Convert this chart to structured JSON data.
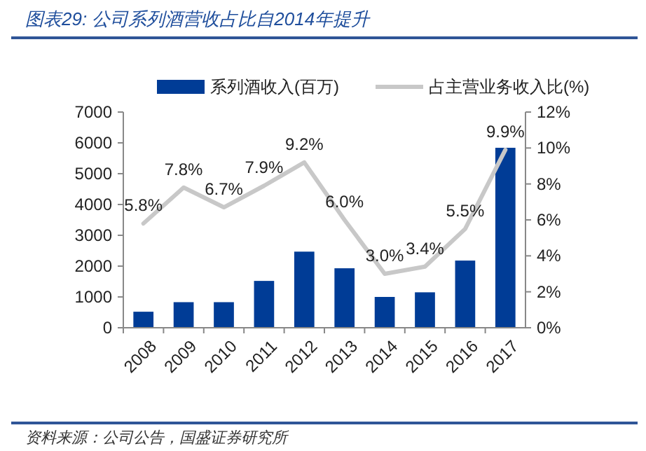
{
  "chart_data": {
    "type": "bar",
    "title": "图表29:  公司系列酒营收占比自2014年提升",
    "annotations": [
      "资料来源：公司公告，国盛证券研究所"
    ],
    "categories": [
      "2008",
      "2009",
      "2010",
      "2011",
      "2012",
      "2013",
      "2014",
      "2015",
      "2016",
      "2017"
    ],
    "series": [
      {
        "name": "系列酒收入(百万)",
        "color": "#003c96",
        "values": [
          520,
          830,
          830,
          1520,
          2470,
          1930,
          1000,
          1150,
          2180,
          5840
        ]
      },
      {
        "name": "占主营业务收入比(%)",
        "type": "line",
        "axis": "y2",
        "color": "#c8c8c8",
        "values": [
          5.8,
          7.8,
          6.7,
          7.9,
          9.2,
          6.0,
          3.0,
          3.4,
          5.5,
          9.9
        ],
        "value_labels": [
          "5.8%",
          "7.8%",
          "6.7%",
          "7.9%",
          "9.2%",
          "6.0%",
          "3.0%",
          "3.4%",
          "5.5%",
          "9.9%"
        ]
      }
    ],
    "ylim": [
      0,
      7000
    ],
    "yticks": [
      0,
      1000,
      2000,
      3000,
      4000,
      5000,
      6000,
      7000
    ],
    "y2lim": [
      0,
      12
    ],
    "y2ticks": [
      {
        "value": 0,
        "label": "0%"
      },
      {
        "value": 2,
        "label": "2%"
      },
      {
        "value": 4,
        "label": "4%"
      },
      {
        "value": 6,
        "label": "6%"
      },
      {
        "value": 8,
        "label": "8%"
      },
      {
        "value": 10,
        "label": "10%"
      },
      {
        "value": 12,
        "label": "12%"
      }
    ],
    "legend": "top",
    "grid": false
  }
}
